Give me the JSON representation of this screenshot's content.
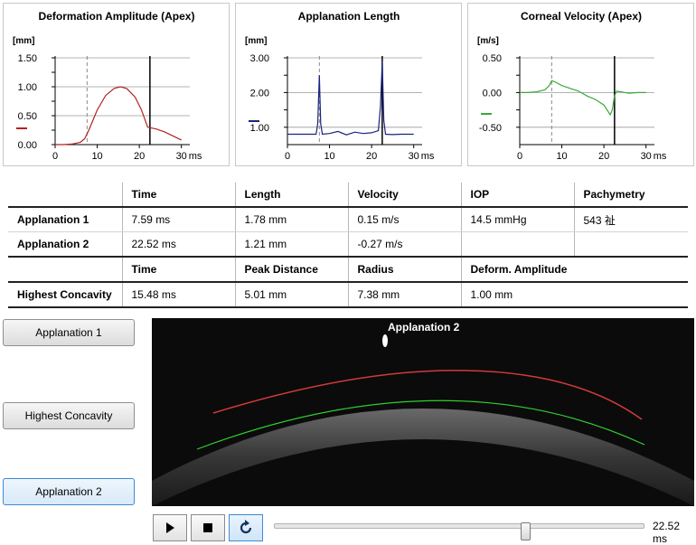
{
  "charts": {
    "deformation": {
      "title": "Deformation Amplitude (Apex)",
      "unit": "[mm]",
      "yticks": [
        "1.50",
        "1.00",
        "0.50",
        "0.00"
      ],
      "xticks": [
        "0",
        "10",
        "20",
        "30"
      ],
      "ms": "ms",
      "color": "#b32222"
    },
    "applanation": {
      "title": "Applanation Length",
      "unit": "[mm]",
      "yticks": [
        "3.00",
        "2.00",
        "1.00"
      ],
      "xticks": [
        "0",
        "10",
        "20",
        "30"
      ],
      "ms": "ms",
      "color": "#1a237e"
    },
    "velocity": {
      "title": "Corneal Velocity (Apex)",
      "unit": "[m/s]",
      "yticks": [
        "0.50",
        "0.00",
        "-0.50"
      ],
      "xticks": [
        "0",
        "10",
        "20",
        "30"
      ],
      "ms": "ms",
      "color": "#3aa83a"
    }
  },
  "chart_data": [
    {
      "type": "line",
      "title": "Deformation Amplitude (Apex)",
      "ylabel": "[mm]",
      "xlabel": "ms",
      "xlim": [
        0,
        32
      ],
      "ylim": [
        0,
        1.5
      ],
      "series": [
        {
          "x": [
            0,
            2,
            4,
            6,
            7,
            8,
            10,
            12,
            14,
            15.5,
            17,
            19,
            20.5,
            22,
            22.1,
            24,
            26,
            28,
            30
          ],
          "y": [
            0.0,
            0.0,
            0.01,
            0.04,
            0.1,
            0.25,
            0.6,
            0.85,
            0.97,
            1.0,
            0.97,
            0.82,
            0.6,
            0.3,
            0.3,
            0.27,
            0.22,
            0.15,
            0.08
          ]
        }
      ],
      "markers": [
        7.59,
        22.52
      ]
    },
    {
      "type": "line",
      "title": "Applanation Length",
      "ylabel": "[mm]",
      "xlabel": "ms",
      "xlim": [
        0,
        32
      ],
      "ylim": [
        0.5,
        3.0
      ],
      "series": [
        {
          "x": [
            0,
            6.8,
            7.2,
            7.59,
            7.9,
            8.3,
            10,
            12,
            14,
            16,
            18,
            20,
            21.6,
            22.1,
            22.52,
            22.9,
            23.3,
            25,
            27,
            30
          ],
          "y": [
            0.8,
            0.8,
            1.1,
            2.5,
            1.1,
            0.8,
            0.82,
            0.88,
            0.78,
            0.86,
            0.82,
            0.84,
            0.9,
            1.6,
            2.9,
            1.2,
            0.8,
            0.79,
            0.8,
            0.8
          ]
        }
      ],
      "markers": [
        7.59,
        22.52
      ]
    },
    {
      "type": "line",
      "title": "Corneal Velocity (Apex)",
      "ylabel": "[m/s]",
      "xlabel": "ms",
      "xlim": [
        0,
        32
      ],
      "ylim": [
        -0.75,
        0.5
      ],
      "series": [
        {
          "x": [
            0,
            2,
            4,
            6,
            7,
            7.6,
            8.5,
            10,
            12,
            14,
            16,
            18,
            20,
            21.5,
            22,
            22.5,
            23,
            24,
            26,
            28,
            30
          ],
          "y": [
            0.0,
            0.0,
            0.01,
            0.04,
            0.1,
            0.17,
            0.15,
            0.1,
            0.06,
            0.02,
            -0.05,
            -0.1,
            -0.18,
            -0.32,
            -0.25,
            -0.05,
            0.02,
            0.01,
            -0.01,
            0.0,
            0.0
          ]
        }
      ],
      "markers": [
        7.59,
        22.52
      ]
    }
  ],
  "table": {
    "h1": {
      "time": "Time",
      "length": "Length",
      "velocity": "Velocity",
      "iop": "IOP",
      "pachy": "Pachymetry"
    },
    "rows": [
      {
        "label": "Applanation 1",
        "time": "7.59 ms",
        "length": "1.78 mm",
        "velocity": "0.15 m/s",
        "iop": "14.5 mmHg",
        "pachy": "543 祉"
      },
      {
        "label": "Applanation 2",
        "time": "22.52 ms",
        "length": "1.21 mm",
        "velocity": "-0.27 m/s",
        "iop": "",
        "pachy": ""
      }
    ],
    "h2": {
      "time": "Time",
      "peak": "Peak Distance",
      "radius": "Radius",
      "deform": "Deform. Amplitude"
    },
    "hc": {
      "label": "Highest Concavity",
      "time": "15.48 ms",
      "peak": "5.01 mm",
      "radius": "7.38 mm",
      "deform": "1.00 mm"
    }
  },
  "buttons": {
    "app1": "Applanation 1",
    "hc": "Highest Concavity",
    "app2": "Applanation 2"
  },
  "image": {
    "label": "Applanation 2",
    "edge_color": "#d23a3a",
    "inner_color": "#2fcf2f"
  },
  "playback": {
    "time": "22.52 ms",
    "position": 0.68
  }
}
